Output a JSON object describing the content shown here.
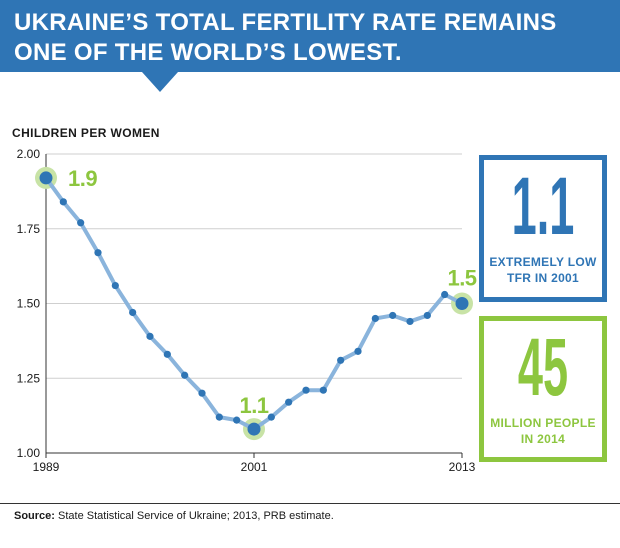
{
  "header": {
    "title": "UKRAINE’S TOTAL FERTILITY RATE REMAINS ONE OF THE WORLD’S LOWEST.",
    "color": "#2f75b5"
  },
  "chart_data": {
    "type": "line",
    "ylabel": "CHILDREN PER WOMEN",
    "ylim": [
      1.0,
      2.0
    ],
    "yticks": [
      "2.00",
      "1.75",
      "1.50",
      "1.25",
      "1.00"
    ],
    "xticks": [
      "1989",
      "2001",
      "2013"
    ],
    "xlim": [
      1989,
      2013
    ],
    "series": [
      {
        "x": [
          1989,
          1990,
          1991,
          1992,
          1993,
          1994,
          1995,
          1996,
          1997,
          1998,
          1999,
          2000,
          2001,
          2002,
          2003,
          2004,
          2005,
          2006,
          2007,
          2008,
          2009,
          2010,
          2011,
          2012,
          2013
        ],
        "y": [
          1.92,
          1.84,
          1.77,
          1.67,
          1.56,
          1.47,
          1.39,
          1.33,
          1.26,
          1.2,
          1.12,
          1.11,
          1.08,
          1.12,
          1.17,
          1.21,
          1.21,
          1.31,
          1.34,
          1.45,
          1.46,
          1.44,
          1.46,
          1.53,
          1.5
        ],
        "line_color": "#8ab4dc",
        "marker_color": "#2f75b5"
      }
    ],
    "annotations": [
      {
        "x": 1989,
        "y": 1.92,
        "label": "1.9"
      },
      {
        "x": 2001,
        "y": 1.08,
        "label": "1.1"
      },
      {
        "x": 2013,
        "y": 1.5,
        "label": "1.5"
      }
    ],
    "annotation_color": "#8dc63f",
    "grid": "horizontal"
  },
  "stats": [
    {
      "value": "1.1",
      "label_line1": "EXTREMELY LOW",
      "label_line2": "TFR IN 2001"
    },
    {
      "value": "45",
      "label_line1": "MILLION PEOPLE",
      "label_line2": "IN 2014"
    }
  ],
  "footer": {
    "source_label": "Source:",
    "source_text": " State Statistical Service of Ukraine; 2013, PRB estimate."
  }
}
